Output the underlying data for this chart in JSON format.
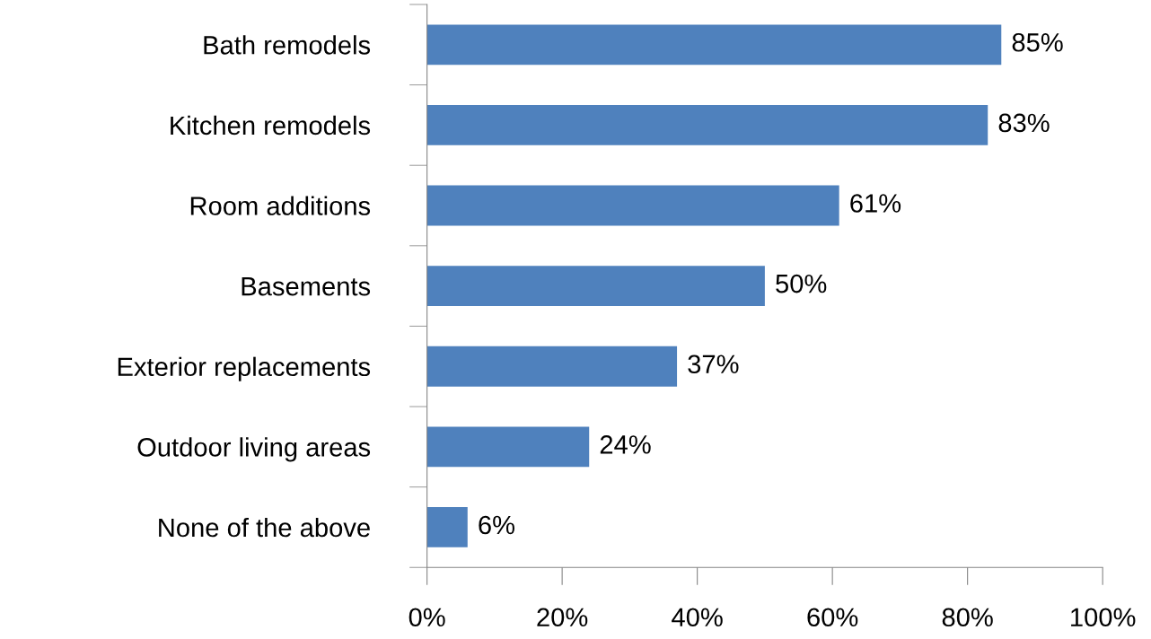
{
  "chart_data": {
    "type": "bar",
    "orientation": "horizontal",
    "categories": [
      "Bath remodels",
      "Kitchen remodels",
      "Room additions",
      "Basements",
      "Exterior replacements",
      "Outdoor living areas",
      "None of the above"
    ],
    "values": [
      85,
      83,
      61,
      50,
      37,
      24,
      6
    ],
    "value_labels": [
      "85%",
      "83%",
      "61%",
      "50%",
      "37%",
      "24%",
      "6%"
    ],
    "color": "#4f81bd",
    "xlim": [
      0,
      100
    ],
    "xticks": [
      {
        "value": 0,
        "label": "0%"
      },
      {
        "value": 20,
        "label": "20%"
      },
      {
        "value": 40,
        "label": "40%"
      },
      {
        "value": 60,
        "label": "60%"
      },
      {
        "value": 80,
        "label": "80%"
      },
      {
        "value": 100,
        "label": "100%"
      }
    ],
    "grid": false,
    "legend": false
  }
}
